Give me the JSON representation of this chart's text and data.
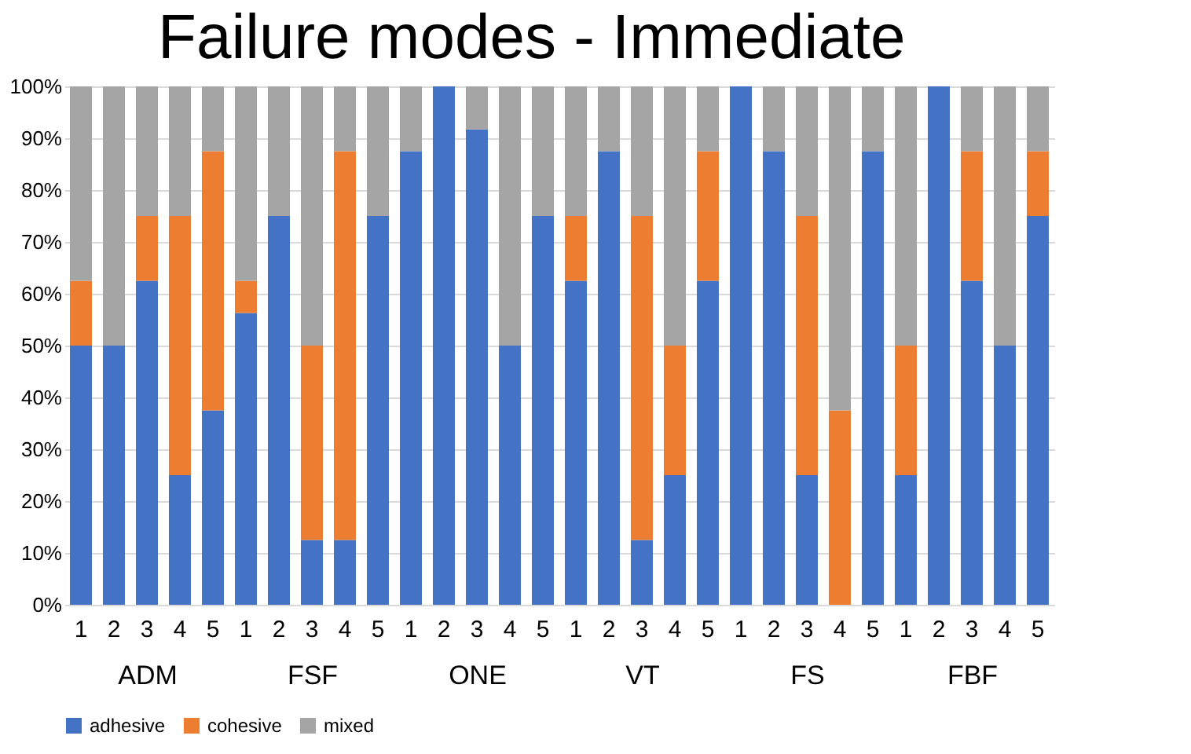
{
  "chart_data": [
    {
      "type": "bar",
      "title": "Failure modes - Immediate",
      "xlabel": "ADM",
      "categories": [
        "1",
        "2",
        "3",
        "4",
        "5"
      ],
      "stacked": true,
      "ylim": [
        0,
        100
      ],
      "yticks": [
        {
          "value": 0,
          "label": "0%"
        },
        {
          "value": 10,
          "label": "10%"
        },
        {
          "value": 20,
          "label": "20%"
        },
        {
          "value": 30,
          "label": "30%"
        },
        {
          "value": 40,
          "label": "40%"
        },
        {
          "value": 50,
          "label": "50%"
        },
        {
          "value": 60,
          "label": "60%"
        },
        {
          "value": 70,
          "label": "70%"
        },
        {
          "value": 80,
          "label": "80%"
        },
        {
          "value": 90,
          "label": "90%"
        },
        {
          "value": 100,
          "label": "100%"
        }
      ],
      "grid": "y",
      "legend": "bottom",
      "series": [
        {
          "name": "adhesive",
          "color": "#4472c4",
          "values": [
            50,
            50,
            62.5,
            25,
            37.5
          ]
        },
        {
          "name": "cohesive",
          "color": "#ed7d31",
          "values": [
            12.5,
            0,
            12.5,
            50,
            50
          ]
        },
        {
          "name": "mixed",
          "color": "#a5a5a5",
          "values": [
            37.5,
            50,
            25,
            25,
            12.5
          ]
        }
      ]
    },
    {
      "type": "bar",
      "xlabel": "FSF",
      "categories": [
        "1",
        "2",
        "3",
        "4",
        "5"
      ],
      "stacked": true,
      "ylim": [
        0,
        100
      ],
      "tick_labels": "x",
      "grid": "y",
      "series": [
        {
          "name": "adhesive",
          "color": "#4472c4",
          "values": [
            56.3,
            75,
            12.5,
            12.5,
            75
          ]
        },
        {
          "name": "cohesive",
          "color": "#ed7d31",
          "values": [
            6.2,
            0,
            37.5,
            75,
            0
          ]
        },
        {
          "name": "mixed",
          "color": "#a5a5a5",
          "values": [
            37.5,
            25,
            50,
            12.5,
            25
          ]
        }
      ]
    },
    {
      "type": "bar",
      "xlabel": "ONE",
      "categories": [
        "1",
        "2",
        "3",
        "4",
        "5"
      ],
      "stacked": true,
      "ylim": [
        0,
        100
      ],
      "tick_labels": "x",
      "grid": "y",
      "series": [
        {
          "name": "adhesive",
          "color": "#4472c4",
          "values": [
            87.5,
            100,
            91.7,
            50,
            75
          ]
        },
        {
          "name": "cohesive",
          "color": "#ed7d31",
          "values": [
            0,
            0,
            0,
            0,
            0
          ]
        },
        {
          "name": "mixed",
          "color": "#a5a5a5",
          "values": [
            12.5,
            0,
            8.3,
            50,
            25
          ]
        }
      ]
    },
    {
      "type": "bar",
      "xlabel": "VT",
      "categories": [
        "1",
        "2",
        "3",
        "4",
        "5"
      ],
      "stacked": true,
      "ylim": [
        0,
        100
      ],
      "tick_labels": "x",
      "grid": "y",
      "series": [
        {
          "name": "adhesive",
          "color": "#4472c4",
          "values": [
            62.5,
            87.5,
            12.5,
            25,
            62.5
          ]
        },
        {
          "name": "cohesive",
          "color": "#ed7d31",
          "values": [
            12.5,
            0,
            62.5,
            25,
            25
          ]
        },
        {
          "name": "mixed",
          "color": "#a5a5a5",
          "values": [
            25,
            12.5,
            25,
            50,
            12.5
          ]
        }
      ]
    },
    {
      "type": "bar",
      "xlabel": "FS",
      "categories": [
        "1",
        "2",
        "3",
        "4",
        "5"
      ],
      "stacked": true,
      "ylim": [
        0,
        100
      ],
      "tick_labels": "x",
      "grid": "y",
      "series": [
        {
          "name": "adhesive",
          "color": "#4472c4",
          "values": [
            100,
            87.5,
            25,
            0,
            87.5
          ]
        },
        {
          "name": "cohesive",
          "color": "#ed7d31",
          "values": [
            0,
            0,
            50,
            37.5,
            0
          ]
        },
        {
          "name": "mixed",
          "color": "#a5a5a5",
          "values": [
            0,
            12.5,
            25,
            62.5,
            12.5
          ]
        }
      ]
    },
    {
      "type": "bar",
      "xlabel": "FBF",
      "categories": [
        "1",
        "2",
        "3",
        "4",
        "5"
      ],
      "stacked": true,
      "ylim": [
        0,
        100
      ],
      "tick_labels": "x",
      "grid": "y",
      "series": [
        {
          "name": "adhesive",
          "color": "#4472c4",
          "values": [
            25,
            100,
            62.5,
            50,
            75
          ]
        },
        {
          "name": "cohesive",
          "color": "#ed7d31",
          "values": [
            25,
            0,
            25,
            0,
            12.5
          ]
        },
        {
          "name": "mixed",
          "color": "#a5a5a5",
          "values": [
            50,
            0,
            12.5,
            50,
            12.5
          ]
        }
      ]
    }
  ]
}
